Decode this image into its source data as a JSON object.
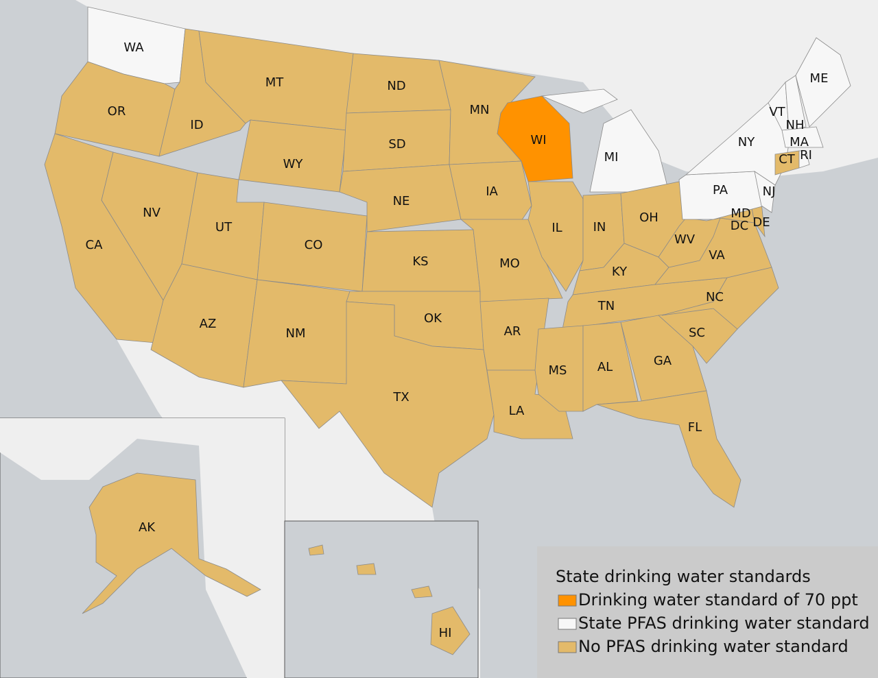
{
  "legend": {
    "title": "State drinking water standards",
    "items": [
      {
        "label": "Drinking water standard of 70 ppt",
        "color": "#ff9200"
      },
      {
        "label": "State PFAS drinking water standard",
        "color": "#f7f7f7"
      },
      {
        "label": "No PFAS drinking water standard",
        "color": "#e3ba6a"
      }
    ]
  },
  "states": [
    {
      "label": "WA",
      "standard": "State PFAS drinking water standard"
    },
    {
      "label": "OR",
      "standard": "No PFAS drinking water standard"
    },
    {
      "label": "CA",
      "standard": "No PFAS drinking water standard"
    },
    {
      "label": "ID",
      "standard": "No PFAS drinking water standard"
    },
    {
      "label": "MT",
      "standard": "No PFAS drinking water standard"
    },
    {
      "label": "WY",
      "standard": "No PFAS drinking water standard"
    },
    {
      "label": "ND",
      "standard": "No PFAS drinking water standard"
    },
    {
      "label": "SD",
      "standard": "No PFAS drinking water standard"
    },
    {
      "label": "NE",
      "standard": "No PFAS drinking water standard"
    },
    {
      "label": "NV",
      "standard": "No PFAS drinking water standard"
    },
    {
      "label": "UT",
      "standard": "No PFAS drinking water standard"
    },
    {
      "label": "CO",
      "standard": "No PFAS drinking water standard"
    },
    {
      "label": "AZ",
      "standard": "No PFAS drinking water standard"
    },
    {
      "label": "NM",
      "standard": "No PFAS drinking water standard"
    },
    {
      "label": "KS",
      "standard": "No PFAS drinking water standard"
    },
    {
      "label": "OK",
      "standard": "No PFAS drinking water standard"
    },
    {
      "label": "TX",
      "standard": "No PFAS drinking water standard"
    },
    {
      "label": "MN",
      "standard": "No PFAS drinking water standard"
    },
    {
      "label": "IA",
      "standard": "No PFAS drinking water standard"
    },
    {
      "label": "MO",
      "standard": "No PFAS drinking water standard"
    },
    {
      "label": "AR",
      "standard": "No PFAS drinking water standard"
    },
    {
      "label": "LA",
      "standard": "No PFAS drinking water standard"
    },
    {
      "label": "WI",
      "standard": "Drinking water standard of 70 ppt"
    },
    {
      "label": "IL",
      "standard": "No PFAS drinking water standard"
    },
    {
      "label": "MI",
      "standard": "State PFAS drinking water standard"
    },
    {
      "label": "IN",
      "standard": "No PFAS drinking water standard"
    },
    {
      "label": "OH",
      "standard": "No PFAS drinking water standard"
    },
    {
      "label": "KY",
      "standard": "No PFAS drinking water standard"
    },
    {
      "label": "TN",
      "standard": "No PFAS drinking water standard"
    },
    {
      "label": "MS",
      "standard": "No PFAS drinking water standard"
    },
    {
      "label": "AL",
      "standard": "No PFAS drinking water standard"
    },
    {
      "label": "GA",
      "standard": "No PFAS drinking water standard"
    },
    {
      "label": "FL",
      "standard": "No PFAS drinking water standard"
    },
    {
      "label": "SC",
      "standard": "No PFAS drinking water standard"
    },
    {
      "label": "NC",
      "standard": "No PFAS drinking water standard"
    },
    {
      "label": "VA",
      "standard": "No PFAS drinking water standard"
    },
    {
      "label": "WV",
      "standard": "No PFAS drinking water standard"
    },
    {
      "label": "MD",
      "standard": "No PFAS drinking water standard"
    },
    {
      "label": "DC",
      "standard": "No PFAS drinking water standard"
    },
    {
      "label": "DE",
      "standard": "No PFAS drinking water standard"
    },
    {
      "label": "PA",
      "standard": "State PFAS drinking water standard"
    },
    {
      "label": "NY",
      "standard": "State PFAS drinking water standard"
    },
    {
      "label": "NJ",
      "standard": "State PFAS drinking water standard"
    },
    {
      "label": "VT",
      "standard": "State PFAS drinking water standard"
    },
    {
      "label": "NH",
      "standard": "State PFAS drinking water standard"
    },
    {
      "label": "ME",
      "standard": "State PFAS drinking water standard"
    },
    {
      "label": "MA",
      "standard": "State PFAS drinking water standard"
    },
    {
      "label": "CT",
      "standard": "No PFAS drinking water standard"
    },
    {
      "label": "RI",
      "standard": "State PFAS drinking water standard"
    },
    {
      "label": "AK",
      "standard": "No PFAS drinking water standard"
    },
    {
      "label": "HI",
      "standard": "No PFAS drinking water standard"
    }
  ]
}
